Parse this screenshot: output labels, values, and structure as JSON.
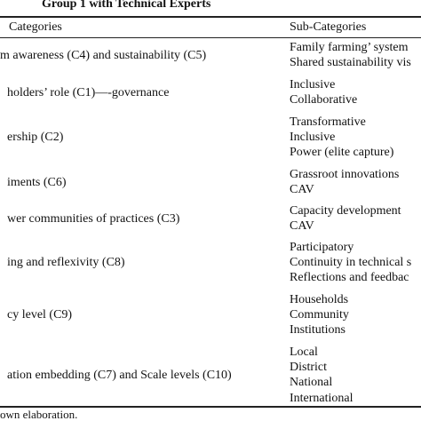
{
  "table": {
    "caption": "Group 1 with Technical Experts",
    "header": [
      "Categories",
      "Sub-Categories"
    ],
    "rows": [
      [
        "m awareness (C4) and sustainability (C5)",
        [
          "Family farming’ system",
          "Shared sustainability vis"
        ]
      ],
      [
        "holders’ role (C1)—-governance",
        [
          "Inclusive",
          "Collaborative"
        ]
      ],
      [
        "ership (C2)",
        [
          "Transformative",
          "Inclusive",
          "Power (elite capture)"
        ]
      ],
      [
        "iments (C6)",
        [
          "Grassroot innovations",
          "CAV"
        ]
      ],
      [
        "wer communities of practices (C3)",
        [
          "Capacity development",
          "CAV"
        ]
      ],
      [
        "ing and reflexivity (C8)",
        [
          "Participatory",
          "Continuity in technical s",
          "Reflections and feedbac"
        ]
      ],
      [
        "cy level (C9)",
        [
          "Households",
          "Community",
          "Institutions"
        ]
      ],
      [
        "ation embedding (C7) and Scale levels (C10)",
        [
          "Local",
          "District",
          "National",
          "International"
        ]
      ]
    ],
    "footnote": "own elaboration."
  }
}
